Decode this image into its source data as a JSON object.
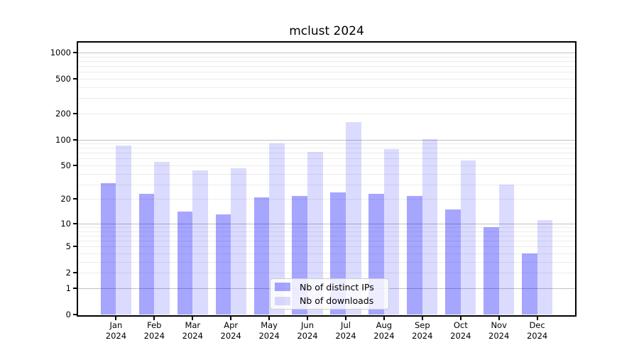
{
  "chart_data": {
    "type": "bar",
    "title": "mclust 2024",
    "categories": [
      "Jan 2024",
      "Feb 2024",
      "Mar 2024",
      "Apr 2024",
      "May 2024",
      "Jun 2024",
      "Jul 2024",
      "Aug 2024",
      "Sep 2024",
      "Oct 2024",
      "Nov 2024",
      "Dec 2024"
    ],
    "series": [
      {
        "name": "Nb of distinct IPs",
        "fill": "rgba(0,0,255,0.35)",
        "color_hex": "#a6a6f5",
        "values": [
          31,
          23,
          14,
          13,
          21,
          22,
          24,
          23,
          22,
          15,
          9,
          4
        ]
      },
      {
        "name": "Nb of downloads",
        "fill": "rgba(0,0,255,0.14)",
        "color_hex": "#dcdcf9",
        "values": [
          85,
          55,
          44,
          46,
          91,
          72,
          160,
          78,
          101,
          57,
          30,
          11
        ]
      }
    ],
    "yscale": "log1p",
    "ylim": [
      0,
      1300
    ],
    "yticks": [
      1000,
      500,
      200,
      100,
      50,
      20,
      10,
      5,
      2,
      1,
      0
    ],
    "major_gridlines": [
      1,
      10,
      100,
      1000
    ],
    "grid": true,
    "legend_position": "lower-center"
  }
}
